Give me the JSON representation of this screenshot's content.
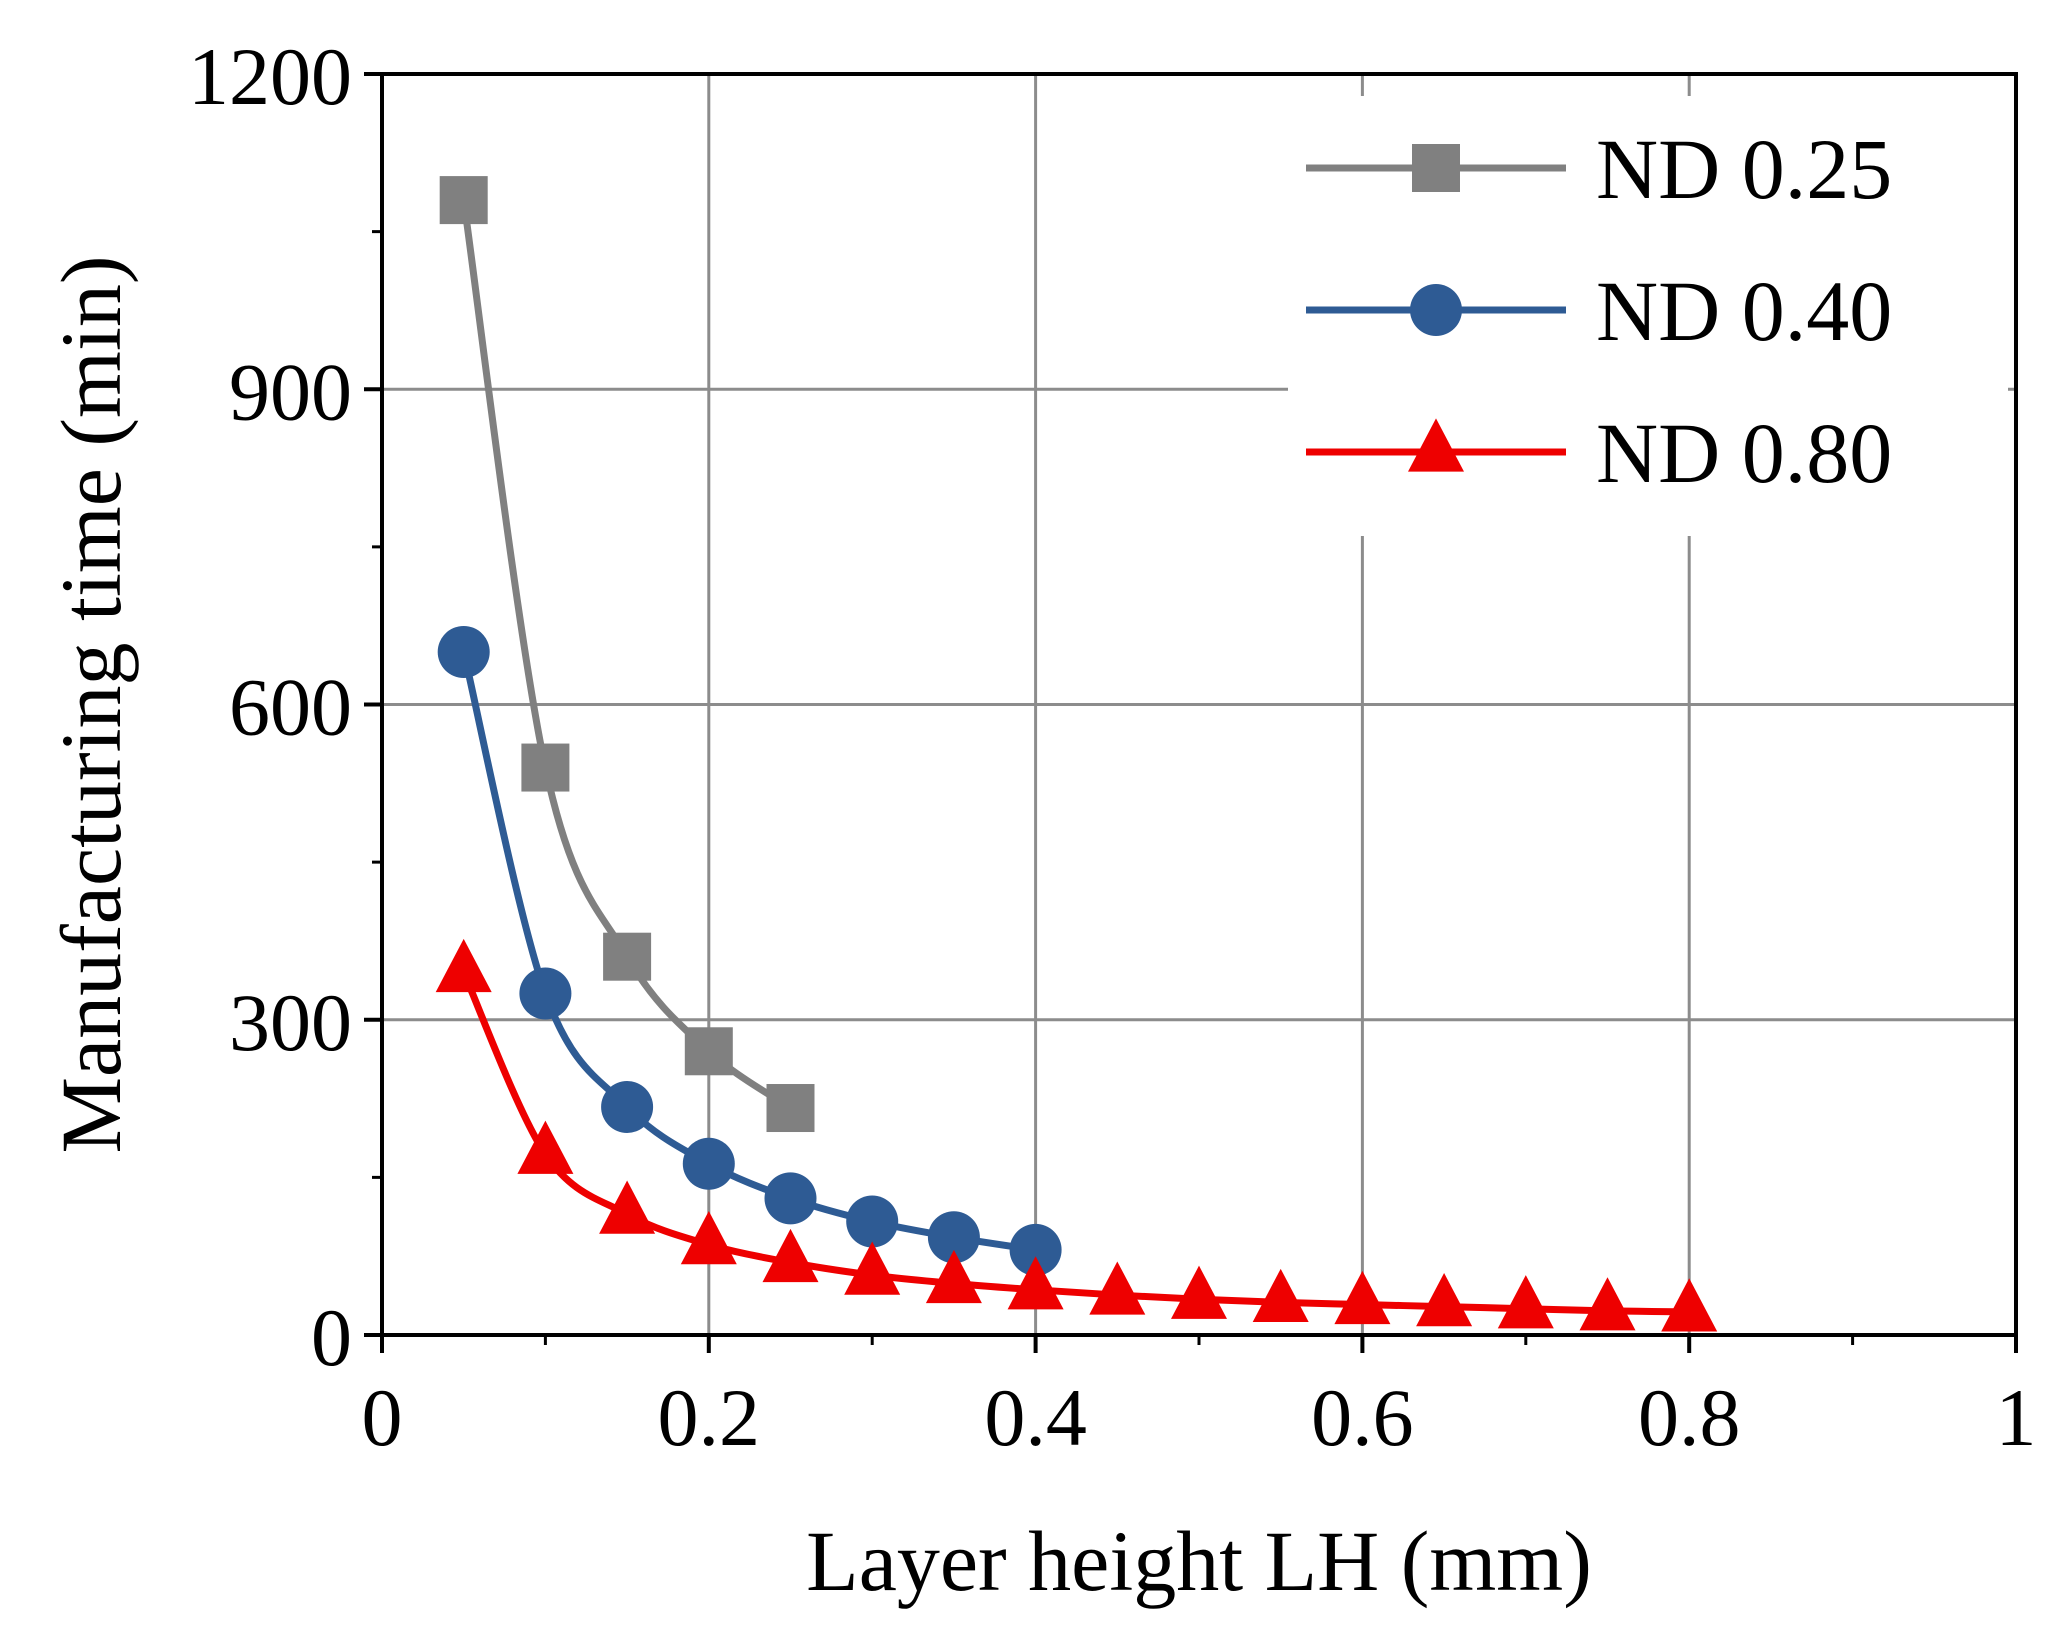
{
  "chart_data": {
    "type": "line",
    "title": "",
    "xlabel": "Layer height LH (mm)",
    "ylabel": "Manufacturing time (min)",
    "xlim": [
      0,
      1
    ],
    "ylim": [
      0,
      1200
    ],
    "xticks": [
      0,
      0.2,
      0.4,
      0.6,
      0.8,
      1
    ],
    "xtick_labels": [
      "0",
      "0.2",
      "0.4",
      "0.6",
      "0.8",
      "1"
    ],
    "yticks": [
      0,
      300,
      600,
      900,
      1200
    ],
    "ytick_labels": [
      "0",
      "300",
      "600",
      "900",
      "1200"
    ],
    "grid": true,
    "legend_position": "top-right",
    "series": [
      {
        "name": "ND 0.25",
        "color": "#808080",
        "marker": "square",
        "x": [
          0.05,
          0.1,
          0.15,
          0.2,
          0.25
        ],
        "y": [
          1080,
          540,
          360,
          270,
          216
        ]
      },
      {
        "name": "ND 0.40",
        "color": "#2e5b94",
        "marker": "circle",
        "x": [
          0.05,
          0.1,
          0.15,
          0.2,
          0.25,
          0.3,
          0.35,
          0.4
        ],
        "y": [
          650,
          325,
          217,
          163,
          130,
          108,
          93,
          81
        ]
      },
      {
        "name": "ND 0.80",
        "color": "#ee0000",
        "marker": "triangle",
        "x": [
          0.05,
          0.1,
          0.15,
          0.2,
          0.25,
          0.3,
          0.35,
          0.4,
          0.45,
          0.5,
          0.55,
          0.6,
          0.65,
          0.7,
          0.75,
          0.8
        ],
        "y": [
          345,
          172,
          115,
          86,
          69,
          57,
          49,
          43,
          38,
          34,
          31,
          29,
          27,
          25,
          23,
          22
        ]
      }
    ]
  }
}
